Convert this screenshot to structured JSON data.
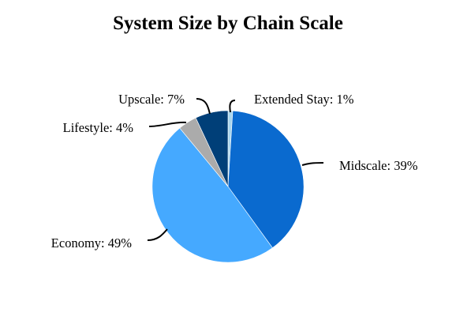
{
  "chart_data": {
    "type": "pie",
    "title": "System Size by Chain Scale",
    "slices": [
      {
        "label": "Extended Stay: 1%",
        "value": 1,
        "color": "#a9d6ee"
      },
      {
        "label": "Midscale: 39%",
        "value": 39,
        "color": "#0a6acf"
      },
      {
        "label": "Economy: 49%",
        "value": 49,
        "color": "#45a9ff"
      },
      {
        "label": "Lifestyle: 4%",
        "value": 4,
        "color": "#ababab"
      },
      {
        "label": "Upscale: 7%",
        "value": 7,
        "color": "#003f78"
      }
    ],
    "legend": "none"
  }
}
